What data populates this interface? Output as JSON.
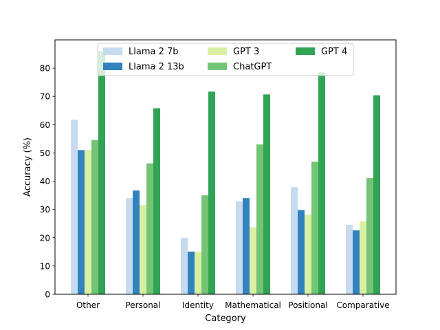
{
  "chart_data": {
    "type": "bar",
    "title": "",
    "xlabel": "Category",
    "ylabel": "Accuracy (%)",
    "ylim": [
      0,
      90
    ],
    "yticks": [
      0,
      10,
      20,
      30,
      40,
      50,
      60,
      70,
      80
    ],
    "categories": [
      "Other",
      "Personal",
      "Identity",
      "Mathematical",
      "Positional",
      "Comparative"
    ],
    "legend_position": "top-center",
    "series": [
      {
        "name": "Llama 2 7b",
        "color": "#c6dbef",
        "values": [
          61.8,
          34.0,
          20.0,
          32.8,
          37.9,
          24.6
        ]
      },
      {
        "name": "Llama 2 13b",
        "color": "#3182bd",
        "values": [
          51.0,
          36.7,
          15.1,
          34.0,
          29.8,
          22.6
        ]
      },
      {
        "name": "GPT 3",
        "color": "#d9f0a3",
        "values": [
          51.0,
          31.6,
          15.1,
          23.7,
          28.1,
          25.8
        ]
      },
      {
        "name": "ChatGPT",
        "color": "#74c476",
        "values": [
          54.6,
          46.3,
          35.0,
          53.0,
          46.9,
          41.1
        ]
      },
      {
        "name": "GPT 4",
        "color": "#31a354",
        "values": [
          86.0,
          65.8,
          71.7,
          70.7,
          78.5,
          70.4
        ]
      }
    ]
  }
}
